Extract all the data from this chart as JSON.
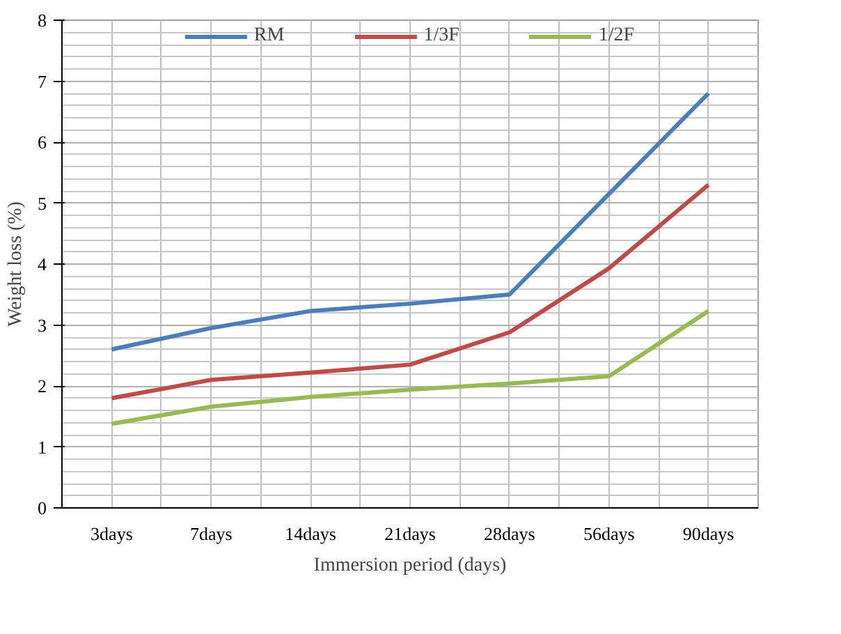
{
  "chart_data": {
    "type": "line",
    "xlabel": "Immersion period (days)",
    "ylabel": "Weight loss (%)",
    "categories": [
      "3days",
      "7days",
      "14days",
      "21days",
      "28days",
      "56days",
      "90days"
    ],
    "series": [
      {
        "name": "RM",
        "color": "#4a7ebb",
        "values": [
          2.6,
          2.95,
          3.23,
          3.35,
          3.5,
          5.15,
          6.8
        ]
      },
      {
        "name": "1/3F",
        "color": "#be4b48",
        "values": [
          1.8,
          2.1,
          2.22,
          2.35,
          2.88,
          3.93,
          5.3
        ]
      },
      {
        "name": "1/2F",
        "color": "#98b954",
        "values": [
          1.38,
          1.66,
          1.82,
          1.94,
          2.04,
          2.16,
          3.23
        ]
      }
    ],
    "ylim": [
      0,
      8
    ],
    "yticks": [
      0,
      1,
      2,
      3,
      4,
      5,
      6,
      7,
      8
    ],
    "grid": true,
    "legend": "top",
    "marker": "none",
    "line_style": "solid"
  }
}
